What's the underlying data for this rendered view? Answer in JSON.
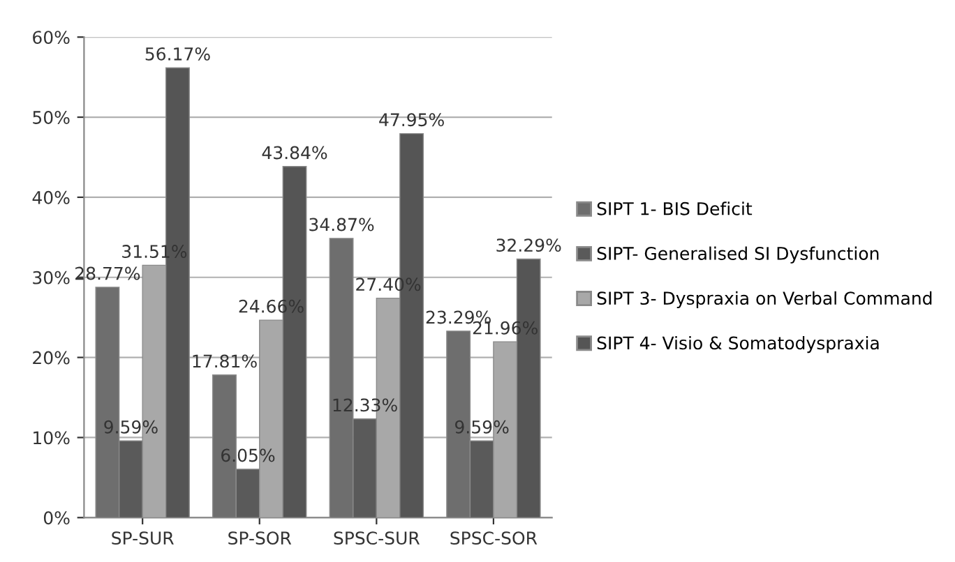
{
  "chart_data": {
    "type": "bar",
    "categories": [
      "SP-SUR",
      "SP-SOR",
      "SPSC-SUR",
      "SPSC-SOR"
    ],
    "series": [
      {
        "name": "SIPT 1- BIS Deficit",
        "color": "#6e6e6e",
        "values": [
          28.77,
          17.81,
          34.87,
          23.29
        ],
        "value_labels": [
          "28.77%",
          "17.81%",
          "34.87%",
          "23.29%"
        ]
      },
      {
        "name": "SIPT- Generalised SI Dysfunction",
        "color": "#5a5a5a",
        "values": [
          9.59,
          6.05,
          12.33,
          9.59
        ],
        "value_labels": [
          "9.59%",
          "6.05%",
          "12.33%",
          "9.59%"
        ]
      },
      {
        "name": "SIPT 3- Dyspraxia on Verbal Command",
        "color": "#a8a8a8",
        "values": [
          31.51,
          24.66,
          27.4,
          21.96
        ],
        "value_labels": [
          "31.51%",
          "24.66%",
          "27.40%",
          "21.96%"
        ]
      },
      {
        "name": "SIPT 4- Visio & Somatodyspraxia",
        "color": "#555555",
        "values": [
          56.17,
          43.84,
          47.95,
          32.29
        ],
        "value_labels": [
          "56.17%",
          "43.84%",
          "47.95%",
          "32.29%"
        ]
      }
    ],
    "ylim": [
      0,
      60
    ],
    "yticks": [
      {
        "value": 0,
        "label": "0%"
      },
      {
        "value": 10,
        "label": "10%"
      },
      {
        "value": 20,
        "label": "20%"
      },
      {
        "value": 30,
        "label": "30%"
      },
      {
        "value": 40,
        "label": "40%"
      },
      {
        "value": 50,
        "label": "50%"
      },
      {
        "value": 60,
        "label": "60%"
      }
    ],
    "grid": "y",
    "legend": "right"
  }
}
